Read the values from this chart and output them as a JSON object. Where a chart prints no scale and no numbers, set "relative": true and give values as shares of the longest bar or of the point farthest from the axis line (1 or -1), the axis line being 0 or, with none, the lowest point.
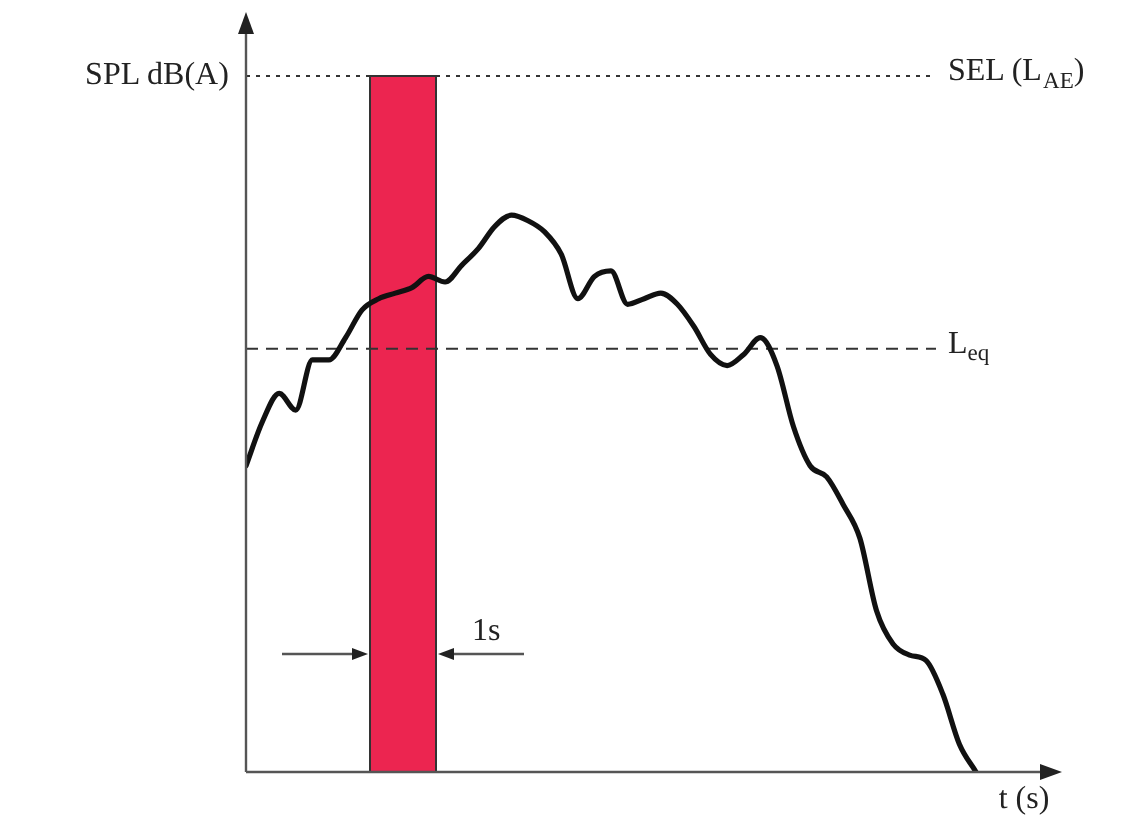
{
  "chart_data": {
    "type": "line",
    "relative": true,
    "xlabel": "t (s)",
    "ylabel": "SPL dB(A)",
    "categories": [
      null,
      null,
      null,
      null,
      null,
      null,
      null,
      null,
      null,
      null,
      null,
      null,
      null,
      null,
      null,
      null,
      null,
      null,
      null,
      null,
      null,
      null,
      null,
      null,
      null,
      null,
      null,
      null,
      null,
      null,
      null,
      null,
      null,
      null,
      null,
      null,
      null,
      null,
      null,
      null,
      null,
      null,
      null,
      null,
      null
    ],
    "series": [
      {
        "color": "#111111",
        "values": [
          0.55,
          0.63,
          0.68,
          0.65,
          0.74,
          0.74,
          0.78,
          0.83,
          0.85,
          0.86,
          0.87,
          0.89,
          0.88,
          0.91,
          0.94,
          0.98,
          1,
          0.99,
          0.97,
          0.93,
          0.85,
          0.89,
          0.9,
          0.84,
          0.85,
          0.86,
          0.84,
          0.8,
          0.75,
          0.73,
          0.75,
          0.78,
          0.73,
          0.62,
          0.55,
          0.53,
          0.48,
          0.42,
          0.29,
          0.23,
          0.21,
          0.2,
          0.14,
          0.05,
          0
        ]
      }
    ],
    "ref_lines": [
      {
        "axis": "y",
        "value": 1.25,
        "label": "SEL (L$_{AE}$)",
        "line_style": "dotted"
      },
      {
        "axis": "y",
        "value": 0.76,
        "label": "L$_{eq}$",
        "line_style": "dashed"
      }
    ],
    "annotations": [
      "1s"
    ],
    "legend": false,
    "marker": "none",
    "line_style": "solid"
  }
}
